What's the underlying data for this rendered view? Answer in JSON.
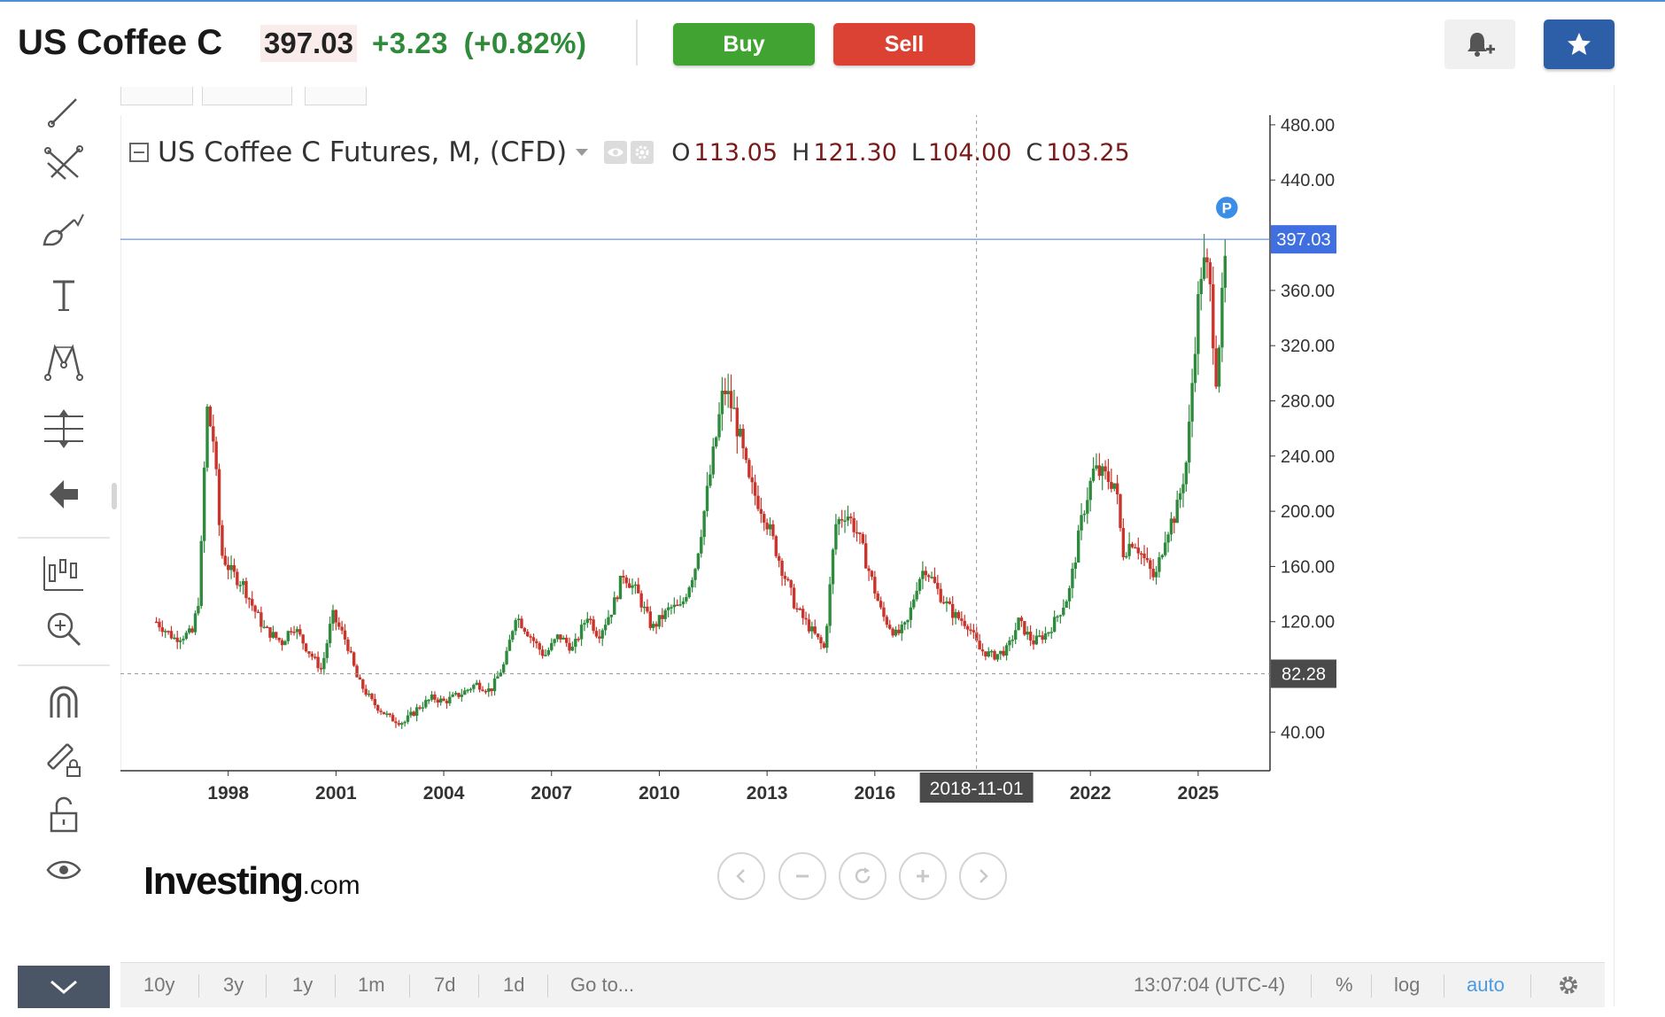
{
  "header": {
    "instrument": "US Coffee C",
    "last_price": "397.03",
    "change": "+3.23",
    "change_pct": "(+0.82%)",
    "buy_label": "Buy",
    "sell_label": "Sell"
  },
  "legend": {
    "title": "US Coffee C Futures, M, (CFD)",
    "o_label": "O",
    "o_value": "113.05",
    "h_label": "H",
    "h_value": "121.30",
    "l_label": "L",
    "l_value": "104.00",
    "c_label": "C",
    "c_value": "103.25"
  },
  "timebar": {
    "ranges": [
      "10y",
      "3y",
      "1y",
      "1m",
      "7d",
      "1d"
    ],
    "goto": "Go to...",
    "clock": "13:07:04 (UTC-4)",
    "pct": "%",
    "log": "log",
    "auto": "auto"
  },
  "logo": {
    "main": "Investing",
    "suffix": ".com"
  },
  "colors": {
    "up": "#2e8b3d",
    "down": "#c9352b",
    "buy": "#41a332",
    "sell": "#dc4234",
    "accent": "#2d5fa8",
    "price_line": "#4a78e0",
    "auto": "#4a9be0"
  },
  "chart_data": {
    "type": "candlestick",
    "interval": "monthly",
    "y_ticks": [
      40,
      80,
      120,
      160,
      200,
      240,
      280,
      320,
      360,
      400,
      440,
      480
    ],
    "y_tick_labels": [
      "40.00",
      "120.00",
      "160.00",
      "200.00",
      "240.00",
      "280.00",
      "320.00",
      "360.00",
      "440.00",
      "480.00"
    ],
    "x_ticks": [
      "1998",
      "2001",
      "2004",
      "2007",
      "2010",
      "2013",
      "2016",
      "2022",
      "2025"
    ],
    "crosshair_x_label": "2018-11-01",
    "current_price_label": "397.03",
    "crosshair_price_label": "82.28",
    "ylim": [
      12,
      487
    ],
    "marker": "P",
    "anchors": [
      [
        1996.0,
        120
      ],
      [
        1996.5,
        108
      ],
      [
        1997.0,
        112
      ],
      [
        1997.2,
        140
      ],
      [
        1997.4,
        275
      ],
      [
        1997.6,
        250
      ],
      [
        1997.8,
        170
      ],
      [
        1998.1,
        155
      ],
      [
        1998.4,
        148
      ],
      [
        1998.7,
        130
      ],
      [
        1999.0,
        115
      ],
      [
        1999.5,
        105
      ],
      [
        1999.8,
        118
      ],
      [
        2000.2,
        100
      ],
      [
        2000.6,
        85
      ],
      [
        2000.9,
        125
      ],
      [
        2001.3,
        105
      ],
      [
        2001.6,
        78
      ],
      [
        2002.0,
        62
      ],
      [
        2002.5,
        50
      ],
      [
        2002.9,
        47
      ],
      [
        2003.3,
        58
      ],
      [
        2003.7,
        65
      ],
      [
        2004.0,
        62
      ],
      [
        2004.5,
        68
      ],
      [
        2004.9,
        75
      ],
      [
        2005.3,
        70
      ],
      [
        2005.7,
        90
      ],
      [
        2006.0,
        125
      ],
      [
        2006.4,
        110
      ],
      [
        2006.8,
        95
      ],
      [
        2007.2,
        110
      ],
      [
        2007.6,
        100
      ],
      [
        2008.0,
        125
      ],
      [
        2008.3,
        110
      ],
      [
        2008.7,
        130
      ],
      [
        2009.0,
        155
      ],
      [
        2009.4,
        140
      ],
      [
        2009.8,
        115
      ],
      [
        2010.3,
        130
      ],
      [
        2010.6,
        130
      ],
      [
        2011.0,
        160
      ],
      [
        2011.5,
        240
      ],
      [
        2011.8,
        290
      ],
      [
        2012.1,
        270
      ],
      [
        2012.5,
        220
      ],
      [
        2012.9,
        200
      ],
      [
        2013.4,
        160
      ],
      [
        2013.8,
        130
      ],
      [
        2014.2,
        115
      ],
      [
        2014.6,
        100
      ],
      [
        2014.9,
        190
      ],
      [
        2015.2,
        200
      ],
      [
        2015.5,
        185
      ],
      [
        2015.8,
        160
      ],
      [
        2016.2,
        125
      ],
      [
        2016.6,
        110
      ],
      [
        2016.9,
        118
      ],
      [
        2017.2,
        150
      ],
      [
        2017.4,
        160
      ],
      [
        2017.8,
        140
      ],
      [
        2018.2,
        125
      ],
      [
        2018.6,
        118
      ],
      [
        2018.9,
        100
      ],
      [
        2019.3,
        95
      ],
      [
        2019.7,
        100
      ],
      [
        2020.0,
        120
      ],
      [
        2020.4,
        105
      ],
      [
        2020.8,
        112
      ],
      [
        2021.0,
        120
      ],
      [
        2021.4,
        140
      ],
      [
        2021.8,
        200
      ],
      [
        2022.1,
        230
      ],
      [
        2022.4,
        225
      ],
      [
        2022.7,
        220
      ],
      [
        2022.9,
        170
      ],
      [
        2023.2,
        180
      ],
      [
        2023.5,
        165
      ],
      [
        2023.8,
        150
      ],
      [
        2024.1,
        185
      ],
      [
        2024.4,
        200
      ],
      [
        2024.7,
        240
      ],
      [
        2024.9,
        320
      ],
      [
        2025.1,
        380
      ],
      [
        2025.3,
        370
      ],
      [
        2025.5,
        300
      ],
      [
        2025.7,
        360
      ],
      [
        2025.8,
        397
      ]
    ]
  }
}
